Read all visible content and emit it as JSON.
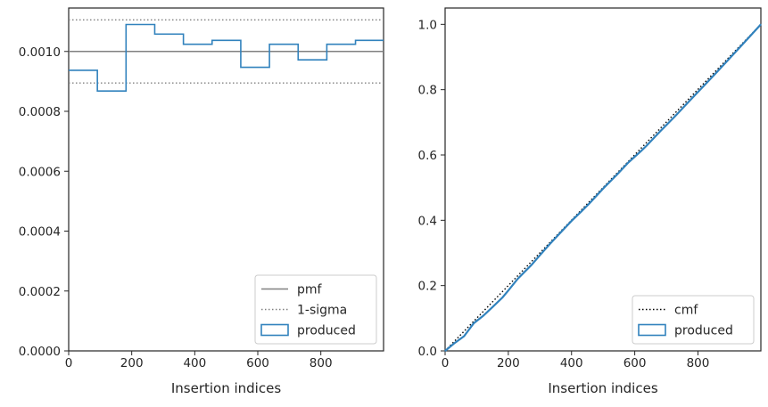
{
  "chart_data": [
    {
      "type": "histogram",
      "xlabel": "Insertion indices",
      "ylabel": "",
      "xlim": [
        0,
        999
      ],
      "ylim": [
        0,
        0.001145
      ],
      "xticks": [
        0,
        200,
        400,
        600,
        800
      ],
      "yticks": [
        0.0,
        0.0002,
        0.0004,
        0.0006,
        0.0008,
        0.001
      ],
      "ytick_labels": [
        "0.0000",
        "0.0002",
        "0.0004",
        "0.0006",
        "0.0008",
        "0.0010"
      ],
      "reference_lines": {
        "pmf": 0.001,
        "sigma_upper": 0.0011055,
        "sigma_lower": 0.0008945
      },
      "bin_edges": [
        0,
        91,
        182,
        273,
        364,
        455,
        546,
        637,
        728,
        819,
        910,
        999
      ],
      "bin_values": [
        0.000937,
        0.000868,
        0.00109,
        0.001058,
        0.001024,
        0.001037,
        0.000947,
        0.001024,
        0.000972,
        0.001024,
        0.001037
      ],
      "legend": {
        "position": "lower-right",
        "entries": [
          {
            "label": "pmf",
            "style": "solid",
            "color": "#808080"
          },
          {
            "label": "1-sigma",
            "style": "dotted",
            "color": "#808080"
          },
          {
            "label": "produced",
            "style": "box",
            "color": "#3182bd"
          }
        ]
      }
    },
    {
      "type": "line",
      "xlabel": "Insertion indices",
      "ylabel": "",
      "xlim": [
        0,
        999
      ],
      "ylim": [
        0,
        1.05
      ],
      "xticks": [
        0,
        200,
        400,
        600,
        800
      ],
      "yticks": [
        0.0,
        0.2,
        0.4,
        0.6,
        0.8,
        1.0
      ],
      "ytick_labels": [
        "0.0",
        "0.2",
        "0.4",
        "0.6",
        "0.8",
        "1.0"
      ],
      "series": [
        {
          "name": "cmf",
          "style": "dotted",
          "color": "#000000",
          "x": [
            0,
            999
          ],
          "y": [
            0,
            1.0
          ]
        },
        {
          "name": "produced",
          "style": "solid",
          "color": "#3182bd",
          "x": [
            0,
            30,
            60,
            91,
            120,
            150,
            182,
            200,
            230,
            273,
            300,
            330,
            364,
            400,
            430,
            455,
            500,
            546,
            580,
            620,
            637,
            680,
            728,
            760,
            800,
            819,
            860,
            910,
            950,
            999
          ],
          "y": [
            0,
            0.024,
            0.045,
            0.085,
            0.107,
            0.134,
            0.164,
            0.185,
            0.221,
            0.263,
            0.293,
            0.326,
            0.361,
            0.398,
            0.426,
            0.45,
            0.497,
            0.542,
            0.577,
            0.612,
            0.628,
            0.672,
            0.719,
            0.752,
            0.793,
            0.812,
            0.854,
            0.906,
            0.948,
            1.0
          ]
        }
      ],
      "legend": {
        "position": "lower-right",
        "entries": [
          {
            "label": "cmf",
            "style": "dotted",
            "color": "#000000"
          },
          {
            "label": "produced",
            "style": "box",
            "color": "#3182bd"
          }
        ]
      }
    }
  ]
}
